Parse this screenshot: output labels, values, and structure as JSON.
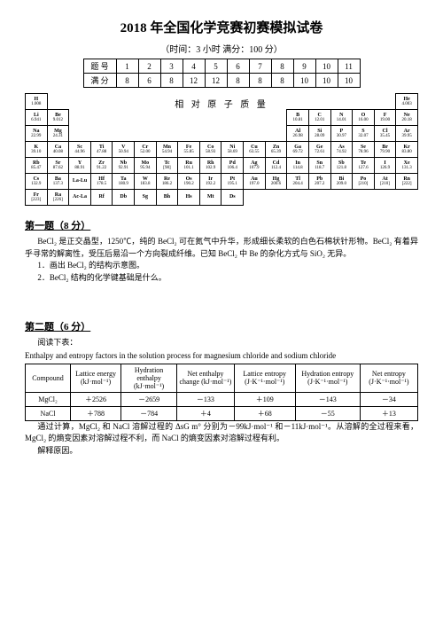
{
  "title": "2018 年全国化学竞赛初赛模拟试卷",
  "subtitle": "（时间：3 小时   满分：100 分）",
  "score": {
    "row1_label": "题 号",
    "row2_label": "满 分",
    "nums": [
      "1",
      "2",
      "3",
      "4",
      "5",
      "6",
      "7",
      "8",
      "9",
      "10",
      "11"
    ],
    "points": [
      "8",
      "6",
      "8",
      "12",
      "12",
      "8",
      "8",
      "8",
      "10",
      "10",
      "10"
    ]
  },
  "ptable_caption": "相 对 原 子 质 量",
  "pt": {
    "r1": [
      [
        "H",
        "1.008"
      ],
      null,
      null,
      null,
      null,
      null,
      null,
      null,
      null,
      null,
      null,
      null,
      null,
      null,
      null,
      null,
      null,
      [
        "He",
        "4.003"
      ]
    ],
    "r2": [
      [
        "Li",
        "6.941"
      ],
      [
        "Be",
        "9.012"
      ],
      null,
      null,
      null,
      null,
      null,
      null,
      null,
      null,
      null,
      null,
      [
        "B",
        "10.81"
      ],
      [
        "C",
        "12.01"
      ],
      [
        "N",
        "14.01"
      ],
      [
        "O",
        "16.00"
      ],
      [
        "F",
        "19.00"
      ],
      [
        "Ne",
        "20.18"
      ]
    ],
    "r3": [
      [
        "Na",
        "22.99"
      ],
      [
        "Mg",
        "24.31"
      ],
      null,
      null,
      null,
      null,
      null,
      null,
      null,
      null,
      null,
      null,
      [
        "Al",
        "26.98"
      ],
      [
        "Si",
        "28.09"
      ],
      [
        "P",
        "30.97"
      ],
      [
        "S",
        "32.07"
      ],
      [
        "Cl",
        "35.45"
      ],
      [
        "Ar",
        "39.95"
      ]
    ],
    "r4": [
      [
        "K",
        "39.10"
      ],
      [
        "Ca",
        "40.08"
      ],
      [
        "Sc",
        "44.96"
      ],
      [
        "Ti",
        "47.88"
      ],
      [
        "V",
        "50.94"
      ],
      [
        "Cr",
        "52.00"
      ],
      [
        "Mn",
        "54.94"
      ],
      [
        "Fe",
        "55.85"
      ],
      [
        "Co",
        "58.93"
      ],
      [
        "Ni",
        "58.69"
      ],
      [
        "Cu",
        "63.55"
      ],
      [
        "Zn",
        "65.39"
      ],
      [
        "Ga",
        "69.72"
      ],
      [
        "Ge",
        "72.61"
      ],
      [
        "As",
        "74.92"
      ],
      [
        "Se",
        "78.96"
      ],
      [
        "Br",
        "79.90"
      ],
      [
        "Kr",
        "83.80"
      ]
    ],
    "r5": [
      [
        "Rb",
        "85.47"
      ],
      [
        "Sr",
        "87.62"
      ],
      [
        "Y",
        "88.91"
      ],
      [
        "Zr",
        "91.22"
      ],
      [
        "Nb",
        "92.91"
      ],
      [
        "Mo",
        "95.94"
      ],
      [
        "Tc",
        "[98]"
      ],
      [
        "Ru",
        "101.1"
      ],
      [
        "Rh",
        "102.9"
      ],
      [
        "Pd",
        "106.4"
      ],
      [
        "Ag",
        "107.9"
      ],
      [
        "Cd",
        "112.4"
      ],
      [
        "In",
        "114.8"
      ],
      [
        "Sn",
        "118.7"
      ],
      [
        "Sb",
        "121.8"
      ],
      [
        "Te",
        "127.6"
      ],
      [
        "I",
        "126.9"
      ],
      [
        "Xe",
        "131.3"
      ]
    ],
    "r6": [
      [
        "Cs",
        "132.9"
      ],
      [
        "Ba",
        "137.3"
      ],
      [
        "La-Lu",
        ""
      ],
      [
        "Hf",
        "178.5"
      ],
      [
        "Ta",
        "180.9"
      ],
      [
        "W",
        "183.8"
      ],
      [
        "Re",
        "186.2"
      ],
      [
        "Os",
        "190.2"
      ],
      [
        "Ir",
        "192.2"
      ],
      [
        "Pt",
        "195.1"
      ],
      [
        "Au",
        "197.0"
      ],
      [
        "Hg",
        "200.6"
      ],
      [
        "Tl",
        "204.4"
      ],
      [
        "Pb",
        "207.2"
      ],
      [
        "Bi",
        "209.0"
      ],
      [
        "Po",
        "[210]"
      ],
      [
        "At",
        "[210]"
      ],
      [
        "Rn",
        "[222]"
      ]
    ],
    "r7": [
      [
        "Fr",
        "[223]"
      ],
      [
        "Ra",
        "[226]"
      ],
      [
        "Ac-La",
        ""
      ],
      [
        "Rf",
        ""
      ],
      [
        "Db",
        ""
      ],
      [
        "Sg",
        ""
      ],
      [
        "Bh",
        ""
      ],
      [
        "Hs",
        ""
      ],
      [
        "Mt",
        ""
      ],
      [
        "Ds",
        ""
      ],
      null,
      null,
      null,
      null,
      null,
      null,
      null,
      null
    ]
  },
  "q1": {
    "head": "第一题（8 分）",
    "p1": "BeCl₂ 是正交晶型，1250℃，纯的 BeCl₂ 可在氮气中升华，形成细长柔软的白色石棉状针形物。BeCl₂ 有着异乎寻常的解离性，受压后易沿一个方向裂成纤维。已知 BeCl₂ 中 Be 的杂化方式与 SiO₂ 无异。",
    "l1": "1．画出 BeCl₂ 的结构示意图。",
    "l2": "2．BeCl₂ 结构的化学键基础是什么。"
  },
  "q2": {
    "head": "第二题（6 分）",
    "lead": "阅读下表：",
    "eng": "Enthalpy and entropy factors in the solution process for magnesium chloride and sodium chloride",
    "headers": [
      "Compound",
      "Lattice energy (kJ·mol⁻¹)",
      "Hydration enthalpy (kJ·mol⁻¹)",
      "Net enthalpy change (kJ·mol⁻¹)",
      "Lattice entropy (J·K⁻¹·mol⁻¹)",
      "Hydration entropy (J·K⁻¹·mol⁻¹)",
      "Net entropy (J·K⁻¹·mol⁻¹)"
    ],
    "rows": [
      [
        "MgCl₂",
        "＋2526",
        "－2659",
        "－133",
        "＋109",
        "－143",
        "－34"
      ],
      [
        "NaCl",
        "＋788",
        "－784",
        "＋4",
        "＋68",
        "－55",
        "＋13"
      ]
    ],
    "p2": "通过计算，MgCl₂ 和 NaCl 溶解过程的 ΔsG m° 分别为－99kJ·mol⁻¹ 和－11kJ·mol⁻¹。从溶解的全过程来看，MgCl₂ 的熵变因素对溶解过程不利，而 NaCl 的熵变因素对溶解过程有利。",
    "p3": "解释原因。"
  }
}
